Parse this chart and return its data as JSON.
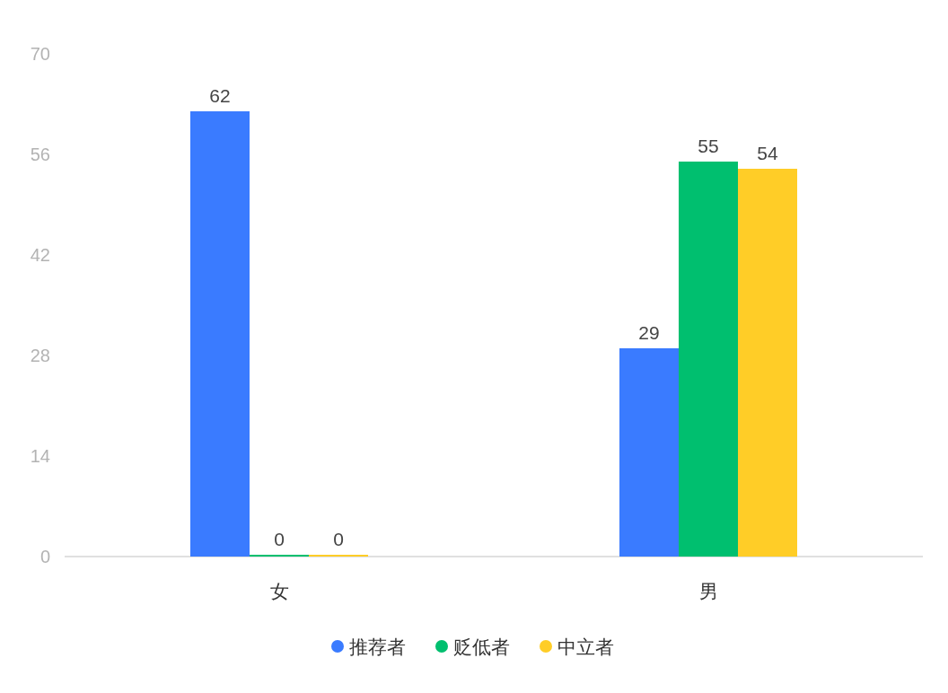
{
  "chart_data": {
    "type": "bar",
    "categories": [
      "女",
      "男"
    ],
    "series": [
      {
        "name": "推荐者",
        "color": "#3a7bff",
        "values": [
          62,
          29
        ]
      },
      {
        "name": "贬低者",
        "color": "#00bf6f",
        "values": [
          0,
          55
        ]
      },
      {
        "name": "中立者",
        "color": "#ffcd27",
        "values": [
          0,
          54
        ]
      }
    ],
    "ylim": [
      0,
      70
    ],
    "yticks": [
      0,
      14,
      28,
      42,
      56,
      70
    ],
    "data_labels": true,
    "legend": "bottom"
  }
}
